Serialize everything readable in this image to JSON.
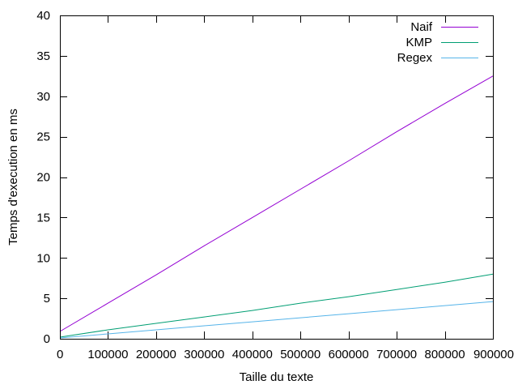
{
  "chart_data": {
    "type": "line",
    "title": "",
    "xlabel": "Taille du texte",
    "ylabel": "Temps d'execution en ms",
    "xlim": [
      0,
      900000
    ],
    "ylim": [
      0,
      40
    ],
    "xticks": [
      0,
      100000,
      200000,
      300000,
      400000,
      500000,
      600000,
      700000,
      800000,
      900000
    ],
    "yticks": [
      0,
      5,
      10,
      15,
      20,
      25,
      30,
      35,
      40
    ],
    "grid": false,
    "legend_position": "top-right",
    "x": [
      0,
      100000,
      200000,
      300000,
      400000,
      500000,
      600000,
      700000,
      800000,
      900000
    ],
    "series": [
      {
        "name": "Naif",
        "color": "#9400d3",
        "values": [
          0.9,
          4.4,
          7.9,
          11.5,
          15.0,
          18.5,
          22.0,
          25.6,
          29.1,
          32.5
        ]
      },
      {
        "name": "KMP",
        "color": "#009e73",
        "values": [
          0.2,
          1.1,
          1.9,
          2.7,
          3.5,
          4.4,
          5.2,
          6.1,
          7.0,
          8.0
        ]
      },
      {
        "name": "Regex",
        "color": "#56b4e9",
        "values": [
          0.1,
          0.6,
          1.1,
          1.6,
          2.1,
          2.6,
          3.1,
          3.6,
          4.1,
          4.6
        ]
      }
    ]
  }
}
